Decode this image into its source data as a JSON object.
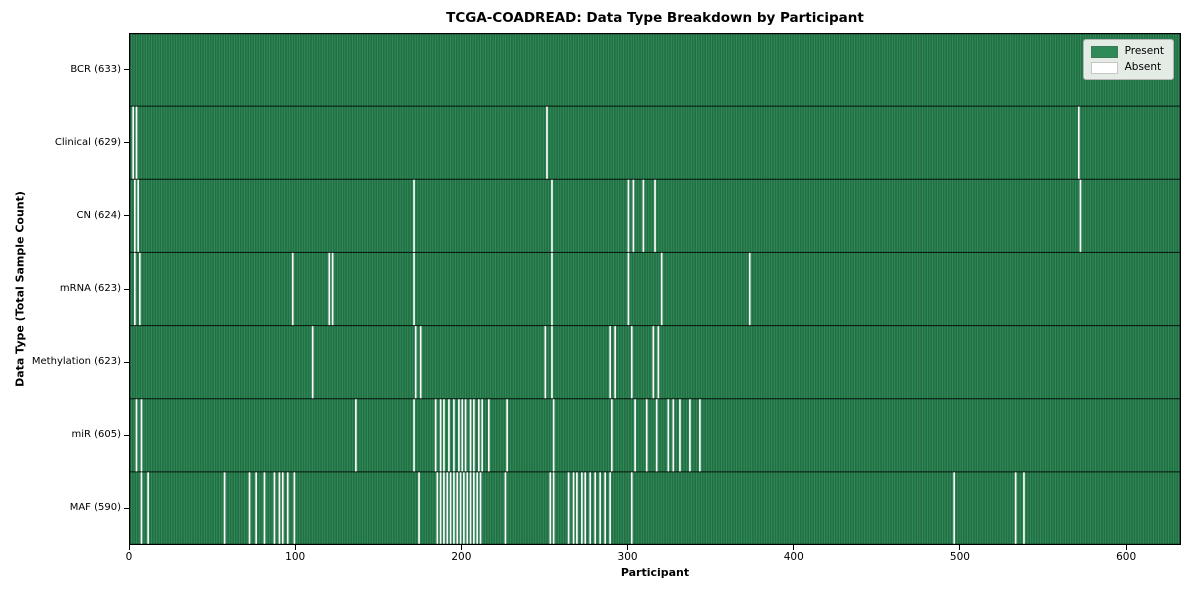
{
  "chart_data": {
    "type": "heatmap",
    "title": "TCGA-COADREAD: Data Type Breakdown by Participant",
    "xlabel": "Participant",
    "ylabel": "Data Type (Total Sample Count)",
    "n_participants": 633,
    "x_ticks": [
      0,
      100,
      200,
      300,
      400,
      500,
      600
    ],
    "x_range": [
      0,
      633
    ],
    "grid": false,
    "legend_position": "upper right",
    "colors": {
      "present": "#2e8b57",
      "absent": "#ffffff",
      "bar_edge": "rgba(12,36,24,0.5)",
      "row_separator": "rgba(0,0,0,0.85)",
      "frame": "#000000"
    },
    "legend": [
      {
        "label": "Present",
        "color": "#2e8b57"
      },
      {
        "label": "Absent",
        "color": "#ffffff"
      }
    ],
    "rows": [
      {
        "label": "BCR",
        "total": 633,
        "display": "BCR (633)",
        "absent_participants": []
      },
      {
        "label": "Clinical",
        "total": 629,
        "display": "Clinical (629)",
        "absent_participants": [
          2,
          4,
          251,
          571
        ]
      },
      {
        "label": "CN",
        "total": 624,
        "display": "CN (624)",
        "absent_participants": [
          3,
          5,
          171,
          254,
          300,
          303,
          309,
          316,
          572
        ]
      },
      {
        "label": "mRNA",
        "total": 623,
        "display": "mRNA (623)",
        "absent_participants": [
          3,
          6,
          98,
          120,
          122,
          171,
          254,
          300,
          320,
          373
        ]
      },
      {
        "label": "Methylation",
        "total": 623,
        "display": "Methylation (623)",
        "absent_participants": [
          110,
          172,
          175,
          250,
          254,
          289,
          292,
          302,
          315,
          318
        ]
      },
      {
        "label": "miR",
        "total": 605,
        "display": "miR (605)",
        "absent_participants": [
          4,
          7,
          136,
          171,
          184,
          187,
          189,
          192,
          195,
          198,
          200,
          202,
          205,
          207,
          210,
          212,
          216,
          227,
          255,
          290,
          304,
          311,
          317,
          324,
          327,
          331,
          337,
          343
        ]
      },
      {
        "label": "MAF",
        "total": 590,
        "display": "MAF (590)",
        "absent_participants": [
          7,
          11,
          57,
          72,
          76,
          81,
          87,
          90,
          92,
          95,
          99,
          174,
          185,
          187,
          189,
          191,
          193,
          195,
          197,
          199,
          201,
          203,
          205,
          207,
          209,
          211,
          226,
          253,
          255,
          264,
          267,
          269,
          272,
          274,
          277,
          280,
          283,
          286,
          289,
          302,
          496,
          533,
          538
        ]
      }
    ]
  }
}
